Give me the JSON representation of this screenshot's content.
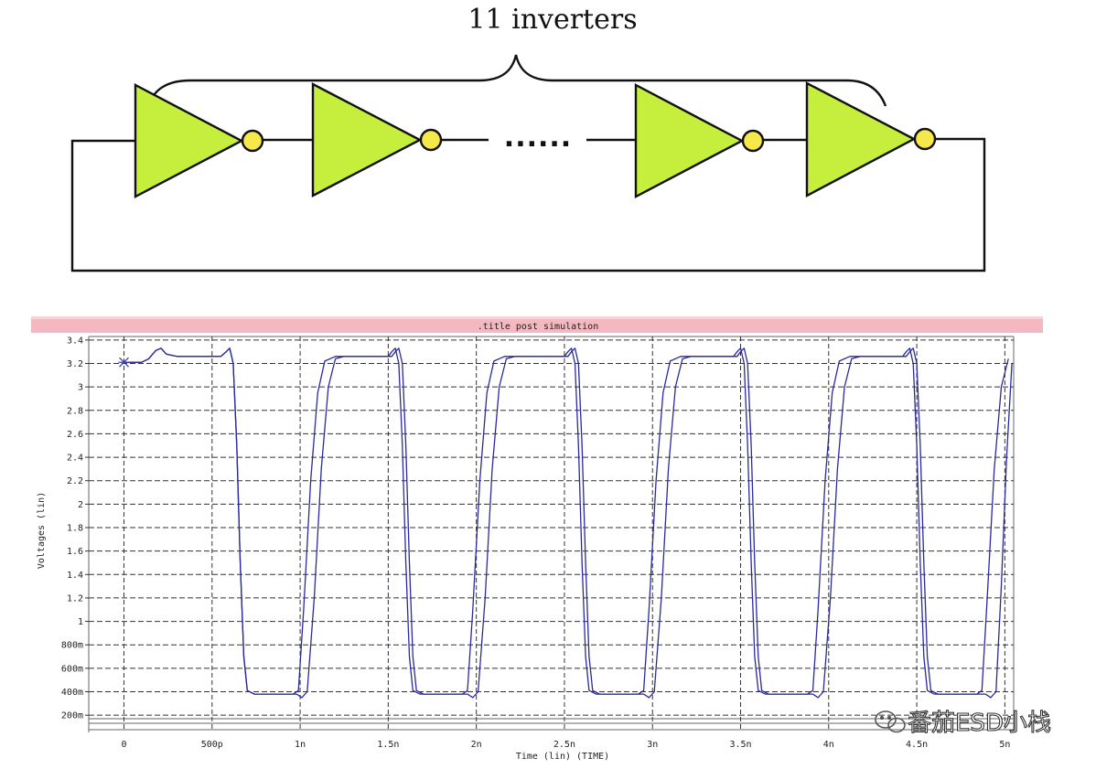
{
  "diagram": {
    "title": "11 inverters",
    "ellipsis": "......",
    "colors": {
      "gate_fill": "#c6ee3c",
      "bubble_fill": "#f6e84a",
      "wire": "#111111"
    }
  },
  "simulation": {
    "titlebar": ".title post simulation",
    "titlebar_color": "#f4b8c0",
    "watermark": "番茄ESD小栈",
    "watermark_icon": "wechat-icon"
  },
  "chart_data": {
    "type": "line",
    "title": ".title post simulation",
    "xlabel": "Time (lin) (TIME)",
    "ylabel": "Voltages (lin)",
    "xlim": [
      -0.2,
      5.05
    ],
    "ylim": [
      0.17,
      3.43
    ],
    "grid": true,
    "line_color": "#2a2a9c",
    "x_ticks": [
      {
        "v": 0,
        "label": "0"
      },
      {
        "v": 0.5,
        "label": "500p"
      },
      {
        "v": 1,
        "label": "1n"
      },
      {
        "v": 1.5,
        "label": "1.5n"
      },
      {
        "v": 2,
        "label": "2n"
      },
      {
        "v": 2.5,
        "label": "2.5n"
      },
      {
        "v": 3,
        "label": "3n"
      },
      {
        "v": 3.5,
        "label": "3.5n"
      },
      {
        "v": 4,
        "label": "4n"
      },
      {
        "v": 4.5,
        "label": "4.5n"
      },
      {
        "v": 5,
        "label": "5n"
      }
    ],
    "y_ticks": [
      {
        "v": 0.2,
        "label": "200m"
      },
      {
        "v": 0.4,
        "label": "400m"
      },
      {
        "v": 0.6,
        "label": "600m"
      },
      {
        "v": 0.8,
        "label": "800m"
      },
      {
        "v": 1.0,
        "label": "1"
      },
      {
        "v": 1.2,
        "label": "1.2"
      },
      {
        "v": 1.4,
        "label": "1.4"
      },
      {
        "v": 1.6,
        "label": "1.6"
      },
      {
        "v": 1.8,
        "label": "1.8"
      },
      {
        "v": 2.0,
        "label": "2"
      },
      {
        "v": 2.2,
        "label": "2.2"
      },
      {
        "v": 2.4,
        "label": "2.4"
      },
      {
        "v": 2.6,
        "label": "2.6"
      },
      {
        "v": 2.8,
        "label": "2.8"
      },
      {
        "v": 3.0,
        "label": "3"
      },
      {
        "v": 3.2,
        "label": "3.2"
      },
      {
        "v": 3.4,
        "label": "3.4"
      }
    ],
    "series": [
      {
        "points": [
          [
            0,
            3.21
          ],
          [
            0.1,
            3.21
          ],
          [
            0.14,
            3.24
          ],
          [
            0.18,
            3.31
          ],
          [
            0.21,
            3.33
          ],
          [
            0.24,
            3.28
          ],
          [
            0.3,
            3.26
          ],
          [
            0.5,
            3.26
          ],
          [
            0.55,
            3.26
          ],
          [
            0.58,
            3.3
          ],
          [
            0.6,
            3.33
          ],
          [
            0.62,
            3.2
          ],
          [
            0.64,
            2.5
          ],
          [
            0.66,
            1.5
          ],
          [
            0.68,
            0.7
          ],
          [
            0.7,
            0.41
          ],
          [
            0.74,
            0.38
          ],
          [
            0.9,
            0.38
          ],
          [
            0.98,
            0.38
          ],
          [
            1.01,
            0.35
          ],
          [
            1.04,
            0.4
          ],
          [
            1.08,
            1.2
          ],
          [
            1.12,
            2.3
          ],
          [
            1.16,
            3.0
          ],
          [
            1.2,
            3.24
          ],
          [
            1.25,
            3.26
          ],
          [
            1.5,
            3.26
          ],
          [
            1.52,
            3.3
          ],
          [
            1.54,
            3.33
          ],
          [
            1.56,
            3.2
          ],
          [
            1.58,
            2.5
          ],
          [
            1.6,
            1.5
          ],
          [
            1.62,
            0.7
          ],
          [
            1.64,
            0.41
          ],
          [
            1.68,
            0.38
          ],
          [
            1.88,
            0.38
          ],
          [
            1.95,
            0.38
          ],
          [
            1.98,
            0.35
          ],
          [
            2.01,
            0.4
          ],
          [
            2.05,
            1.2
          ],
          [
            2.09,
            2.3
          ],
          [
            2.13,
            3.0
          ],
          [
            2.17,
            3.24
          ],
          [
            2.22,
            3.26
          ],
          [
            2.5,
            3.26
          ],
          [
            2.52,
            3.3
          ],
          [
            2.54,
            3.33
          ],
          [
            2.56,
            3.2
          ],
          [
            2.58,
            2.5
          ],
          [
            2.6,
            1.5
          ],
          [
            2.62,
            0.7
          ],
          [
            2.64,
            0.41
          ],
          [
            2.68,
            0.38
          ],
          [
            2.88,
            0.38
          ],
          [
            2.95,
            0.38
          ],
          [
            2.98,
            0.35
          ],
          [
            3.01,
            0.4
          ],
          [
            3.05,
            1.2
          ],
          [
            3.09,
            2.3
          ],
          [
            3.13,
            3.0
          ],
          [
            3.17,
            3.24
          ],
          [
            3.22,
            3.26
          ],
          [
            3.46,
            3.26
          ],
          [
            3.48,
            3.3
          ],
          [
            3.5,
            3.33
          ],
          [
            3.52,
            3.2
          ],
          [
            3.54,
            2.5
          ],
          [
            3.56,
            1.5
          ],
          [
            3.58,
            0.7
          ],
          [
            3.6,
            0.41
          ],
          [
            3.64,
            0.38
          ],
          [
            3.84,
            0.38
          ],
          [
            3.91,
            0.38
          ],
          [
            3.94,
            0.35
          ],
          [
            3.97,
            0.4
          ],
          [
            4.01,
            1.2
          ],
          [
            4.05,
            2.3
          ],
          [
            4.09,
            3.0
          ],
          [
            4.13,
            3.24
          ],
          [
            4.18,
            3.26
          ],
          [
            4.42,
            3.26
          ],
          [
            4.44,
            3.3
          ],
          [
            4.46,
            3.33
          ],
          [
            4.48,
            3.2
          ],
          [
            4.5,
            2.5
          ],
          [
            4.52,
            1.5
          ],
          [
            4.54,
            0.7
          ],
          [
            4.56,
            0.41
          ],
          [
            4.6,
            0.38
          ],
          [
            4.82,
            0.38
          ],
          [
            4.89,
            0.38
          ],
          [
            4.92,
            0.35
          ],
          [
            4.95,
            0.4
          ],
          [
            4.98,
            1.3
          ],
          [
            5.01,
            2.4
          ],
          [
            5.04,
            3.2
          ]
        ]
      },
      {
        "points": [
          [
            0,
            3.21
          ],
          [
            0.1,
            3.21
          ],
          [
            0.14,
            3.24
          ],
          [
            0.18,
            3.31
          ],
          [
            0.21,
            3.33
          ],
          [
            0.24,
            3.28
          ],
          [
            0.3,
            3.26
          ],
          [
            0.5,
            3.26
          ],
          [
            0.55,
            3.26
          ],
          [
            0.58,
            3.3
          ],
          [
            0.6,
            3.33
          ],
          [
            0.62,
            3.2
          ],
          [
            0.64,
            2.5
          ],
          [
            0.66,
            1.5
          ],
          [
            0.68,
            0.7
          ],
          [
            0.7,
            0.41
          ],
          [
            0.74,
            0.38
          ],
          [
            0.9,
            0.38
          ],
          [
            0.96,
            0.38
          ],
          [
            0.99,
            0.41
          ],
          [
            1.02,
            1.1
          ],
          [
            1.06,
            2.2
          ],
          [
            1.1,
            2.95
          ],
          [
            1.14,
            3.22
          ],
          [
            1.2,
            3.26
          ],
          [
            1.52,
            3.26
          ],
          [
            1.54,
            3.3
          ],
          [
            1.56,
            3.33
          ],
          [
            1.58,
            3.2
          ],
          [
            1.6,
            2.5
          ],
          [
            1.62,
            1.5
          ],
          [
            1.64,
            0.7
          ],
          [
            1.66,
            0.41
          ],
          [
            1.7,
            0.38
          ],
          [
            1.88,
            0.38
          ],
          [
            1.92,
            0.38
          ],
          [
            1.95,
            0.41
          ],
          [
            1.98,
            1.1
          ],
          [
            2.02,
            2.2
          ],
          [
            2.06,
            2.95
          ],
          [
            2.1,
            3.22
          ],
          [
            2.16,
            3.26
          ],
          [
            2.52,
            3.26
          ],
          [
            2.54,
            3.3
          ],
          [
            2.56,
            3.33
          ],
          [
            2.58,
            3.2
          ],
          [
            2.6,
            2.5
          ],
          [
            2.62,
            1.5
          ],
          [
            2.64,
            0.7
          ],
          [
            2.66,
            0.41
          ],
          [
            2.7,
            0.38
          ],
          [
            2.88,
            0.38
          ],
          [
            2.92,
            0.38
          ],
          [
            2.95,
            0.41
          ],
          [
            2.98,
            1.1
          ],
          [
            3.02,
            2.2
          ],
          [
            3.06,
            2.95
          ],
          [
            3.1,
            3.22
          ],
          [
            3.16,
            3.26
          ],
          [
            3.48,
            3.26
          ],
          [
            3.5,
            3.3
          ],
          [
            3.52,
            3.33
          ],
          [
            3.54,
            3.2
          ],
          [
            3.56,
            2.5
          ],
          [
            3.58,
            1.5
          ],
          [
            3.6,
            0.7
          ],
          [
            3.62,
            0.41
          ],
          [
            3.66,
            0.38
          ],
          [
            3.84,
            0.38
          ],
          [
            3.88,
            0.38
          ],
          [
            3.91,
            0.41
          ],
          [
            3.94,
            1.1
          ],
          [
            3.98,
            2.2
          ],
          [
            4.02,
            2.95
          ],
          [
            4.06,
            3.22
          ],
          [
            4.12,
            3.26
          ],
          [
            4.44,
            3.26
          ],
          [
            4.46,
            3.3
          ],
          [
            4.48,
            3.33
          ],
          [
            4.5,
            3.2
          ],
          [
            4.52,
            2.5
          ],
          [
            4.54,
            1.5
          ],
          [
            4.56,
            0.7
          ],
          [
            4.58,
            0.41
          ],
          [
            4.62,
            0.38
          ],
          [
            4.8,
            0.38
          ],
          [
            4.84,
            0.38
          ],
          [
            4.87,
            0.41
          ],
          [
            4.9,
            1.2
          ],
          [
            4.94,
            2.3
          ],
          [
            4.98,
            3.0
          ],
          [
            5.02,
            3.24
          ]
        ]
      }
    ]
  }
}
